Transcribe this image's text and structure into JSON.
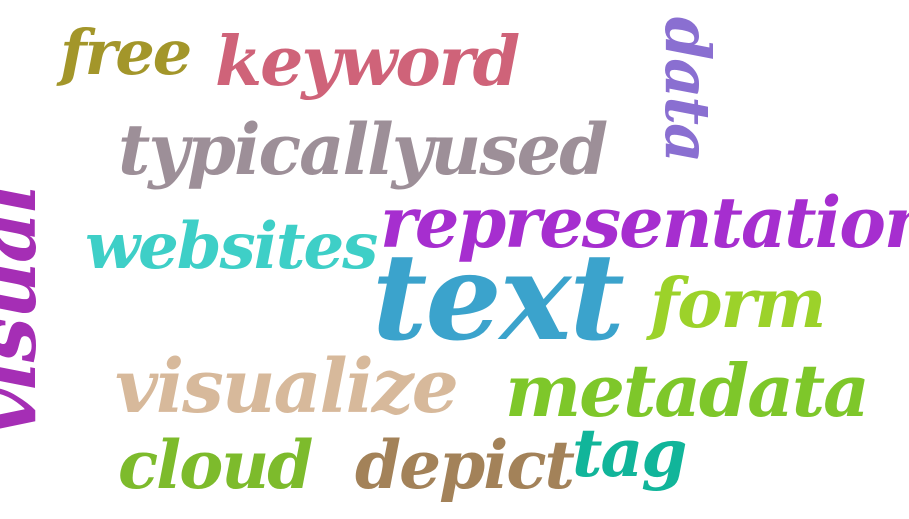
{
  "words": [
    {
      "id": "free",
      "text": "free",
      "color": "#A3962A",
      "weight": 62
    },
    {
      "id": "keyword",
      "text": "keyword",
      "color": "#CF6379",
      "weight": 68
    },
    {
      "id": "data",
      "text": "data",
      "color": "#8A6FD1",
      "weight": 62
    },
    {
      "id": "typicallyused",
      "text": "typicallyused",
      "color": "#9D8F98",
      "weight": 70
    },
    {
      "id": "visual",
      "text": "visual",
      "color": "#A52EB5",
      "weight": 80
    },
    {
      "id": "websites",
      "text": "websites",
      "color": "#3ECFC7",
      "weight": 64
    },
    {
      "id": "representation",
      "text": "representation",
      "color": "#A62ECF",
      "weight": 70
    },
    {
      "id": "text",
      "text": "text",
      "color": "#3BA3CC",
      "weight": 120
    },
    {
      "id": "form",
      "text": "form",
      "color": "#9CD22A",
      "weight": 68
    },
    {
      "id": "visualize",
      "text": "visualize",
      "color": "#D7B99B",
      "weight": 74
    },
    {
      "id": "metadata",
      "text": "metadata",
      "color": "#7EC72A",
      "weight": 72
    },
    {
      "id": "cloud",
      "text": "cloud",
      "color": "#7DBB2C",
      "weight": 66
    },
    {
      "id": "depict",
      "text": "depict",
      "color": "#A38259",
      "weight": 66
    },
    {
      "id": "tag",
      "text": "tag",
      "color": "#11B59A",
      "weight": 66
    }
  ]
}
